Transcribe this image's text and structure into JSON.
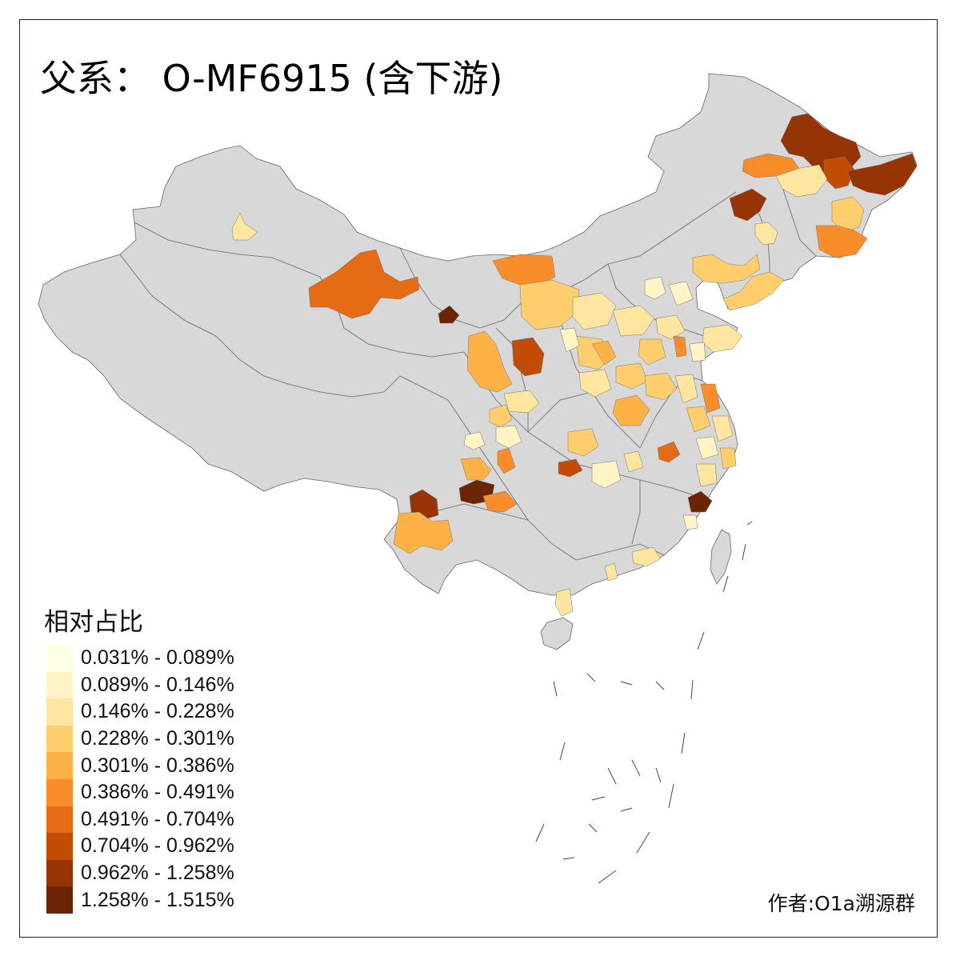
{
  "title": "父系： O-MF6915 (含下游)",
  "legend": {
    "title": "相对占比",
    "items": [
      {
        "label": "0.031% - 0.089%",
        "color": "#ffffe5"
      },
      {
        "label": "0.089% - 0.146%",
        "color": "#fff5c4"
      },
      {
        "label": "0.146% - 0.228%",
        "color": "#fee6a0"
      },
      {
        "label": "0.228% - 0.301%",
        "color": "#fece6d"
      },
      {
        "label": "0.301% - 0.386%",
        "color": "#feb245"
      },
      {
        "label": "0.386% - 0.491%",
        "color": "#f88d29"
      },
      {
        "label": "0.491% - 0.704%",
        "color": "#e56b14"
      },
      {
        "label": "0.704% - 0.962%",
        "color": "#c24b06"
      },
      {
        "label": "0.962% - 1.258%",
        "color": "#973404"
      },
      {
        "label": "1.258% - 1.515%",
        "color": "#6b2505"
      }
    ]
  },
  "credit": "作者:O1a溯源群",
  "base_color": "#d8d8d8",
  "border_color": "#666666"
}
